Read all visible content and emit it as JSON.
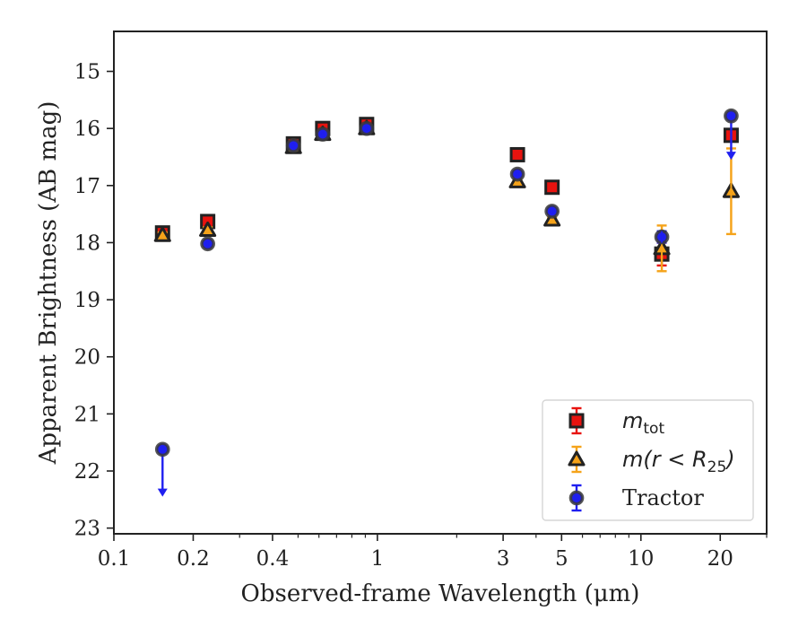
{
  "chart_data": {
    "type": "scatter",
    "xlabel": "Observed-frame Wavelength (μm)",
    "ylabel": "Apparent Brightness (AB mag)",
    "xscale": "log",
    "xlim": [
      0.1,
      30
    ],
    "ylim": [
      23.1,
      14.3
    ],
    "y_inverted": true,
    "x_ticks": [
      {
        "value": 0.1,
        "label": "0.1"
      },
      {
        "value": 0.2,
        "label": "0.2"
      },
      {
        "value": 0.4,
        "label": "0.4"
      },
      {
        "value": 1,
        "label": "1"
      },
      {
        "value": 3,
        "label": "3"
      },
      {
        "value": 5,
        "label": "5"
      },
      {
        "value": 10,
        "label": "10"
      },
      {
        "value": 20,
        "label": "20"
      }
    ],
    "y_ticks": [
      15,
      16,
      17,
      18,
      19,
      20,
      21,
      22,
      23
    ],
    "grid": false,
    "legend_position": "bottom-right",
    "legend": [
      {
        "label_main": "m",
        "label_sub": "tot",
        "series": "m_tot"
      },
      {
        "label_main": "m(r < R",
        "label_sub": "25",
        "label_tail": ")",
        "series": "m_r25"
      },
      {
        "label_main": "Tractor",
        "series": "tractor"
      }
    ],
    "series": [
      {
        "key": "m_tot",
        "marker": "square",
        "color": "#e8130f",
        "edge_color": "#222222",
        "points": [
          {
            "x": 0.153,
            "y": 17.83,
            "err": 0.08
          },
          {
            "x": 0.227,
            "y": 17.63,
            "err": 0.06
          },
          {
            "x": 0.48,
            "y": 16.27,
            "err": 0.04
          },
          {
            "x": 0.62,
            "y": 16.0,
            "err": 0.04
          },
          {
            "x": 0.91,
            "y": 15.93,
            "err": 0.04
          },
          {
            "x": 3.4,
            "y": 16.46,
            "err": 0.03
          },
          {
            "x": 4.6,
            "y": 17.03,
            "err": 0.03
          },
          {
            "x": 12.0,
            "y": 18.2,
            "err": 0.2
          },
          {
            "x": 22.0,
            "y": 16.12,
            "err": 0.05
          }
        ]
      },
      {
        "key": "m_r25",
        "marker": "triangle",
        "color": "#f5a31a",
        "edge_color": "#222222",
        "points": [
          {
            "x": 0.153,
            "y": 17.87,
            "err": 0.05
          },
          {
            "x": 0.227,
            "y": 17.78,
            "err": 0.05
          },
          {
            "x": 0.48,
            "y": 16.33,
            "err": 0.04
          },
          {
            "x": 0.62,
            "y": 16.1,
            "err": 0.04
          },
          {
            "x": 0.91,
            "y": 16.0,
            "err": 0.04
          },
          {
            "x": 3.4,
            "y": 16.93,
            "err": 0.03
          },
          {
            "x": 4.6,
            "y": 17.6,
            "err": 0.04
          },
          {
            "x": 12.0,
            "y": 18.1,
            "err": 0.4
          },
          {
            "x": 22.0,
            "y": 17.1,
            "err": 0.75
          }
        ]
      },
      {
        "key": "tractor",
        "marker": "circle",
        "color": "#1f1ff0",
        "edge_color": "#3a3a3a",
        "points": [
          {
            "x": 0.153,
            "y": 21.62,
            "upper_limit": true,
            "arrow_to": 22.45
          },
          {
            "x": 0.227,
            "y": 18.02,
            "err": 0.04
          },
          {
            "x": 0.48,
            "y": 16.3,
            "err": 0.03
          },
          {
            "x": 0.62,
            "y": 16.1,
            "err": 0.03
          },
          {
            "x": 0.91,
            "y": 16.0,
            "err": 0.03
          },
          {
            "x": 3.4,
            "y": 16.8,
            "err": 0.03
          },
          {
            "x": 4.6,
            "y": 17.45,
            "err": 0.03
          },
          {
            "x": 12.0,
            "y": 17.9,
            "err": 0.1
          },
          {
            "x": 22.0,
            "y": 15.78,
            "upper_limit": true,
            "arrow_to": 16.55
          }
        ]
      }
    ]
  }
}
